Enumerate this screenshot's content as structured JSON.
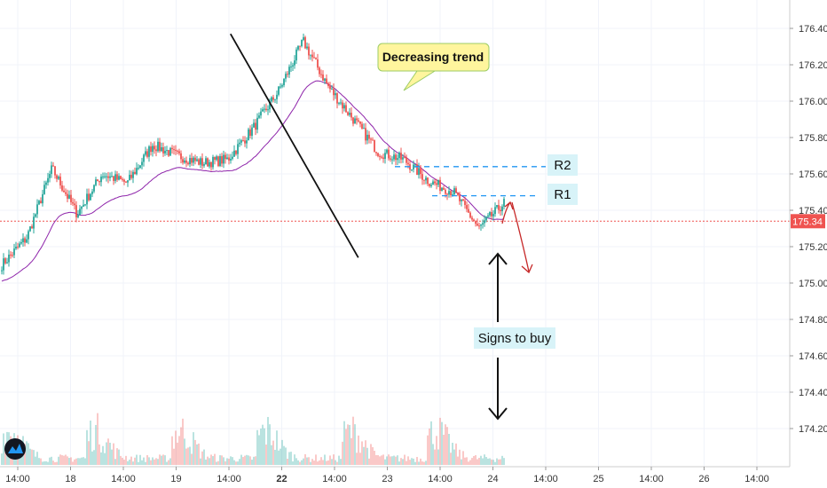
{
  "chart_data": {
    "type": "candlestick",
    "symbol_price_axis": {
      "ticks": [
        "176.40",
        "176.20",
        "176.00",
        "175.80",
        "175.60",
        "175.40",
        "175.20",
        "175.00",
        "174.80",
        "174.60",
        "174.40",
        "174.20"
      ],
      "tick_values": [
        176.4,
        176.2,
        176.0,
        175.8,
        175.6,
        175.4,
        175.2,
        175.0,
        174.8,
        174.6,
        174.4,
        174.2
      ],
      "range": [
        174.03,
        176.52
      ]
    },
    "time_axis": {
      "ticks": [
        "14:00",
        "18",
        "14:00",
        "19",
        "14:00",
        "22",
        "14:00",
        "23",
        "14:00",
        "24",
        "14:00",
        "25",
        "14:00",
        "26",
        "14:00"
      ],
      "bold_ticks": [
        "22"
      ]
    },
    "last_price": "175.34",
    "last_price_value": 175.34,
    "colors": {
      "up": "#26a69a",
      "down": "#ef5350",
      "vwap": "#8e24aa",
      "last_price_line": "#ef5350",
      "level_line": "#2196f3",
      "trendline": "#111111",
      "callout_bg": "#fff59d",
      "label_bg": "#d8f3f8"
    },
    "annotations": {
      "trend_callout": "Decreasing trend",
      "r2_label": "R2",
      "r1_label": "R1",
      "buy_label": "Signs to buy"
    },
    "levels": {
      "R2": 175.64,
      "R1": 175.48
    },
    "trendline": {
      "from": {
        "day_pos": 4.03,
        "price": 176.37
      },
      "to": {
        "day_pos": 6.45,
        "price": 175.14
      }
    },
    "key_prices": [
      175.1,
      175.25,
      175.63,
      175.38,
      175.6,
      175.55,
      175.76,
      175.7,
      175.66,
      175.68,
      175.85,
      176.05,
      176.33,
      176.08,
      175.9,
      175.72,
      175.68,
      175.56,
      175.5,
      175.3,
      175.44
    ]
  }
}
